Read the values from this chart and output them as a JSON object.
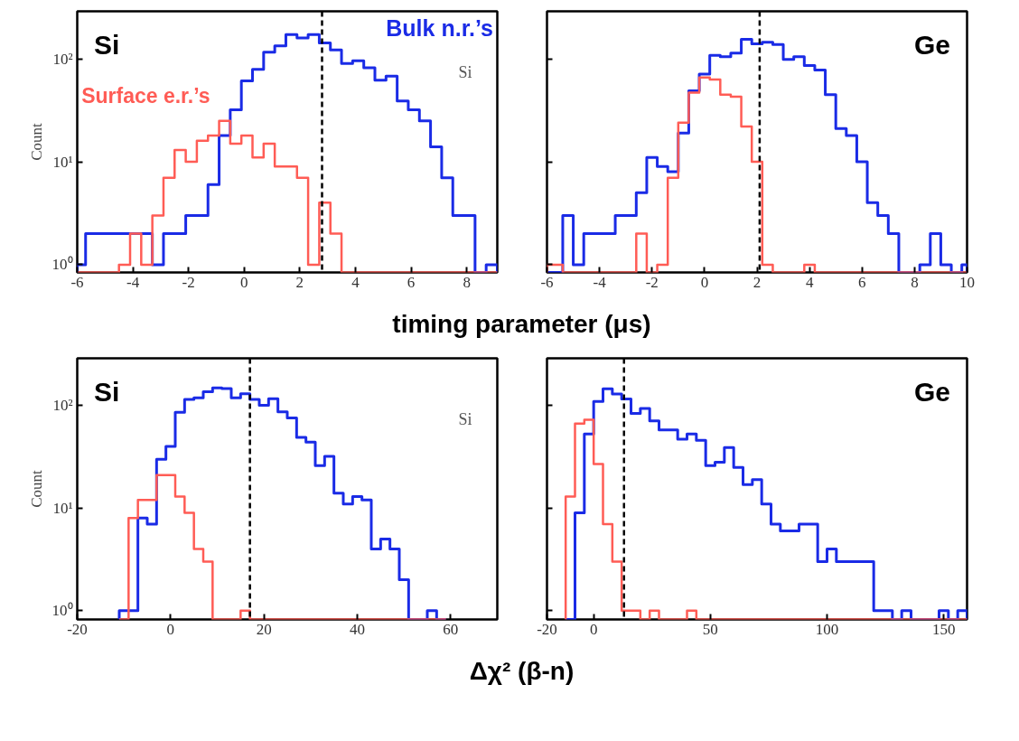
{
  "chart_data": [
    {
      "type": "histogram",
      "title": "Si",
      "ylabel": "Count",
      "xlabel": "timing parameter (μs)",
      "log": true,
      "annotations": [
        "Si"
      ],
      "bins": [
        -6,
        -5.7,
        -5.3,
        -4.9,
        -4.5,
        -4.1,
        -3.7,
        -3.3,
        -2.9,
        -2.5,
        -2.1,
        -1.7,
        -1.3,
        -0.9,
        -0.5,
        -0.1,
        0.3,
        0.7,
        1.1,
        1.5,
        1.9,
        2.3,
        2.7,
        3.1,
        3.5,
        3.9,
        4.3,
        4.7,
        5.1,
        5.5,
        5.9,
        6.3,
        6.7,
        7.1,
        7.5,
        7.9,
        8.3,
        8.7,
        9.1
      ],
      "series": [
        {
          "name": "Bulk n.r.’s",
          "color": "#1a2be6",
          "values": [
            1,
            2,
            2,
            2,
            2,
            2,
            2,
            1,
            2,
            2,
            3,
            3,
            6,
            18,
            32,
            61,
            79,
            116,
            134,
            172,
            160,
            172,
            143,
            122,
            90,
            96,
            82,
            62,
            68,
            39,
            32,
            25,
            14,
            7,
            3,
            3,
            null,
            1
          ]
        },
        {
          "name": "Surface e.r.’s",
          "color": "#ff5c55",
          "values": [
            null,
            null,
            null,
            null,
            1,
            2,
            1,
            3,
            7,
            13,
            10,
            16,
            18,
            25,
            15,
            18,
            11,
            15,
            9,
            9,
            7,
            1,
            4,
            2,
            null,
            null,
            null,
            null,
            null,
            null,
            null,
            null,
            null,
            null,
            null,
            null,
            null,
            null
          ]
        }
      ],
      "xlim": [
        -6,
        9.1
      ],
      "xticks": [
        -6,
        -4,
        -2,
        0,
        2,
        4,
        6,
        8
      ],
      "ylim": [
        0.84,
        290
      ],
      "yticks": [
        {
          "value": 1,
          "label": "10⁰"
        },
        {
          "value": 10,
          "label": "10¹"
        },
        {
          "value": 100,
          "label": "10²"
        }
      ],
      "ref_lines": [
        {
          "axis": "x",
          "value": 2.8,
          "color": "#000000",
          "line_style": "dashed"
        }
      ]
    },
    {
      "type": "histogram",
      "title": "Ge",
      "log": true,
      "tick_labels": "x",
      "bins": [
        -6,
        -5.8,
        -5.4,
        -5,
        -4.6,
        -4.2,
        -3.8,
        -3.4,
        -3,
        -2.6,
        -2.2,
        -1.8,
        -1.4,
        -1,
        -0.6,
        -0.2,
        0.2,
        0.6,
        1,
        1.4,
        1.8,
        2.2,
        2.6,
        3,
        3.4,
        3.8,
        4.2,
        4.6,
        5,
        5.4,
        5.8,
        6.2,
        6.6,
        7,
        7.4,
        7.8,
        8.2,
        8.6,
        9,
        9.4,
        9.8,
        10
      ],
      "series": [
        {
          "color": "#1a2be6",
          "values": [
            null,
            null,
            3,
            1,
            2,
            2,
            2,
            3,
            3,
            5,
            11,
            9,
            8,
            19,
            49,
            71,
            108,
            105,
            114,
            155,
            140,
            145,
            138,
            99,
            105,
            86,
            78,
            45,
            21,
            18,
            10,
            4,
            3,
            2,
            null,
            null,
            1,
            2,
            1,
            null,
            1
          ]
        },
        {
          "color": "#ff5c55",
          "values": [
            1,
            1,
            null,
            null,
            null,
            null,
            null,
            null,
            null,
            2,
            null,
            1,
            7,
            24,
            47,
            66,
            63,
            45,
            43,
            22,
            10,
            1,
            null,
            null,
            null,
            1,
            null,
            null,
            null,
            null,
            null,
            null,
            null,
            null,
            null,
            null,
            null,
            null,
            null,
            null,
            null
          ]
        }
      ],
      "xlim": [
        -6,
        10
      ],
      "xticks": [
        -6,
        -4,
        -2,
        0,
        2,
        4,
        6,
        8,
        10
      ],
      "ylim": [
        0.84,
        290
      ],
      "yticks": [
        {
          "value": 1,
          "label": null
        },
        {
          "value": 10,
          "label": null
        },
        {
          "value": 100,
          "label": null
        }
      ],
      "ref_lines": [
        {
          "axis": "x",
          "value": 2.1,
          "color": "#000000",
          "line_style": "dashed"
        }
      ]
    },
    {
      "type": "histogram",
      "title": "Si",
      "ylabel": "Count",
      "xlabel": "Δχ² (β-n)",
      "log": true,
      "annotations": [
        "Si"
      ],
      "bins": [
        -11,
        -9,
        -7,
        -5,
        -3,
        -1,
        1,
        3,
        5,
        7,
        9,
        11,
        13,
        15,
        17,
        19,
        21,
        23,
        25,
        27,
        29,
        31,
        33,
        35,
        37,
        39,
        41,
        43,
        45,
        47,
        49,
        51,
        53,
        55,
        57,
        59
      ],
      "series": [
        {
          "color": "#1a2be6",
          "values": [
            1,
            1,
            8,
            7,
            30,
            40,
            86,
            115,
            119,
            137,
            149,
            147,
            119,
            131,
            115,
            101,
            117,
            87,
            76,
            49,
            44,
            26,
            32,
            14,
            11,
            13,
            12,
            4,
            5,
            4,
            2,
            null,
            null,
            1,
            null
          ]
        },
        {
          "color": "#ff5c55",
          "values": [
            null,
            8,
            12,
            12,
            21,
            21,
            13,
            9,
            4,
            3,
            null,
            null,
            null,
            1,
            null,
            null,
            null,
            null,
            null,
            null,
            null,
            null,
            null,
            null,
            null,
            null,
            null,
            null,
            null,
            null,
            null,
            null,
            null,
            null,
            null
          ]
        }
      ],
      "xlim": [
        -20,
        70
      ],
      "xticks": [
        -20,
        0,
        20,
        40,
        60
      ],
      "ylim": [
        0.82,
        290
      ],
      "yticks": [
        {
          "value": 1,
          "label": "10⁰"
        },
        {
          "value": 10,
          "label": "10¹"
        },
        {
          "value": 100,
          "label": "10²"
        }
      ],
      "ref_lines": [
        {
          "axis": "x",
          "value": 17,
          "color": "#000000",
          "line_style": "dashed"
        }
      ]
    },
    {
      "type": "histogram",
      "title": "Ge",
      "log": true,
      "tick_labels": "x",
      "bins": [
        -12,
        -8,
        -4,
        0,
        4,
        8,
        12,
        16,
        20,
        24,
        28,
        32,
        36,
        40,
        44,
        48,
        52,
        56,
        60,
        64,
        68,
        72,
        76,
        80,
        84,
        88,
        92,
        96,
        100,
        104,
        108,
        112,
        116,
        120,
        124,
        128,
        132,
        136,
        140,
        144,
        148,
        152,
        156,
        160
      ],
      "series": [
        {
          "color": "#1a2be6",
          "values": [
            null,
            9,
            53,
            110,
            146,
            130,
            116,
            84,
            94,
            71,
            58,
            58,
            47,
            53,
            46,
            26,
            28,
            39,
            25,
            17,
            19,
            11,
            7,
            6,
            6,
            7,
            7,
            3,
            4,
            3,
            3,
            3,
            3,
            1,
            1,
            null,
            1,
            null,
            null,
            null,
            1,
            null,
            1
          ]
        },
        {
          "color": "#ff5c55",
          "values": [
            13,
            67,
            73,
            27,
            7,
            3,
            1,
            1,
            null,
            1,
            null,
            null,
            null,
            1,
            null,
            null,
            null,
            null,
            null,
            null,
            null,
            null,
            null,
            null,
            null,
            null,
            null,
            null,
            null,
            null,
            null,
            null,
            null,
            null,
            null,
            null,
            null,
            null,
            null,
            null,
            null,
            null,
            null
          ]
        }
      ],
      "xlim": [
        -20,
        160
      ],
      "xticks": [
        -20,
        0,
        50,
        100,
        150
      ],
      "ylim": [
        0.82,
        290
      ],
      "yticks": [
        {
          "value": 1,
          "label": null
        },
        {
          "value": 10,
          "label": null
        },
        {
          "value": 100,
          "label": null
        }
      ],
      "ref_lines": [
        {
          "axis": "x",
          "value": 13,
          "color": "#000000",
          "line_style": "dashed"
        }
      ]
    }
  ]
}
